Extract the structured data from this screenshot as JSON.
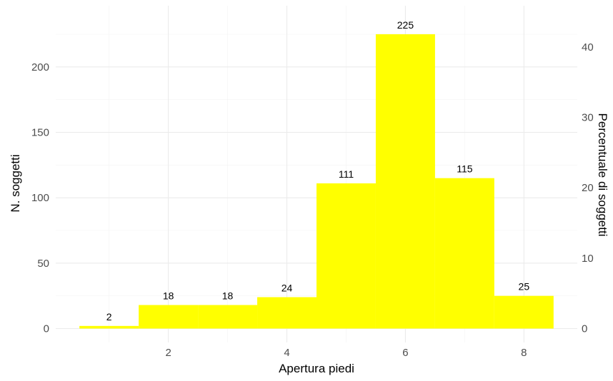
{
  "chart_data": {
    "type": "bar",
    "x": [
      1,
      2,
      3,
      4,
      5,
      6,
      7,
      8
    ],
    "values": [
      2,
      18,
      18,
      24,
      111,
      225,
      115,
      25
    ],
    "data_labels": [
      "2",
      "18",
      "18",
      "24",
      "111",
      "225",
      "115",
      "25"
    ],
    "bar_color": "#ffff00",
    "xlabel": "Apertura piedi",
    "ylabel": "N. soggetti",
    "y2label": "Percentuale di soggetti",
    "xlim": [
      0.5,
      8.5
    ],
    "ylim": [
      0,
      225
    ],
    "x_ticks": [
      2,
      4,
      6,
      8
    ],
    "x_tick_labels": [
      "2",
      "4",
      "6",
      "8"
    ],
    "y_ticks": [
      0,
      50,
      100,
      150,
      200
    ],
    "y_tick_labels": [
      "0",
      "50",
      "100",
      "150",
      "200"
    ],
    "y2_ticks": [
      0,
      10,
      20,
      30,
      40
    ],
    "y2_tick_labels": [
      "0",
      "10",
      "20",
      "30",
      "40"
    ],
    "grid": true,
    "legend": "none"
  }
}
